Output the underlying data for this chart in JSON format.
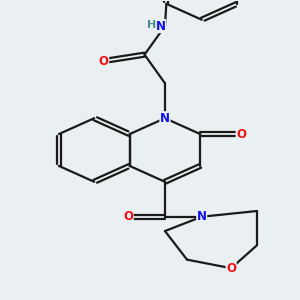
{
  "background_color": "#eaeff2",
  "bond_color": "#1a1a1a",
  "atom_colors": {
    "N": "#1010ee",
    "O": "#ee1010",
    "H": "#4a9090",
    "C": "#1a1a1a"
  },
  "line_width": 1.6,
  "font_size": 8.5
}
